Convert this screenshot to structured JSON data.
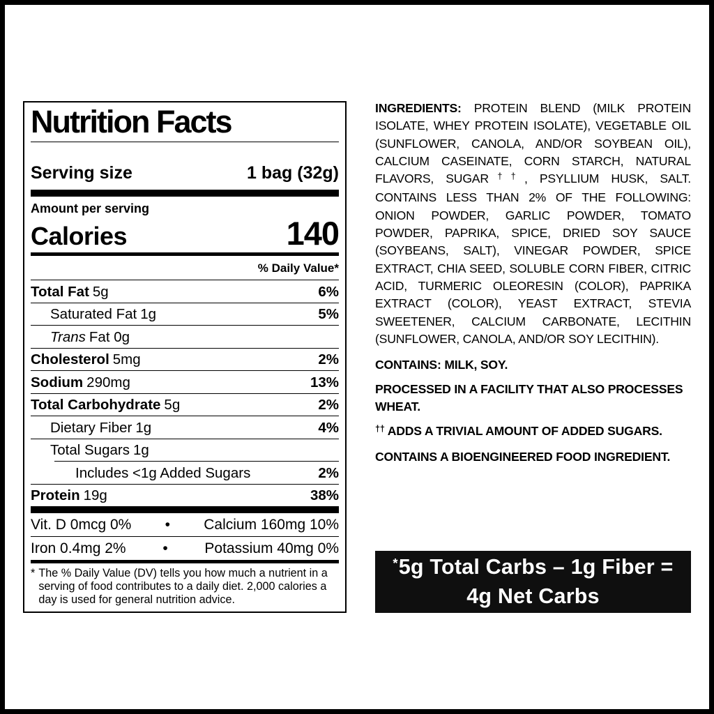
{
  "colors": {
    "text": "#000000",
    "page_background": "#ffffff",
    "net_box_background": "#0f0f0f",
    "net_box_text": "#ffffff"
  },
  "label": {
    "title": "Nutrition Facts",
    "serving": {
      "label": "Serving size",
      "value": "1 bag (32g)"
    },
    "amount_per_serving": "Amount per serving",
    "calories": {
      "label": "Calories",
      "value": "140"
    },
    "daily_value_header": "% Daily Value*",
    "rows": [
      {
        "name": "Total Fat",
        "amount": "5g",
        "dv": "6%"
      },
      {
        "name": "Saturated Fat",
        "amount": "1g",
        "dv": "5%"
      },
      {
        "name": "Trans",
        "amount": "Fat 0g",
        "dv": ""
      },
      {
        "name": "Cholesterol",
        "amount": "5mg",
        "dv": "2%"
      },
      {
        "name": "Sodium",
        "amount": "290mg",
        "dv": "13%"
      },
      {
        "name": "Total Carbohydrate",
        "amount": "5g",
        "dv": "2%"
      },
      {
        "name": "Dietary Fiber",
        "amount": "1g",
        "dv": "4%"
      },
      {
        "name": "Total Sugars",
        "amount": "1g",
        "dv": ""
      },
      {
        "name": "Includes <1g Added Sugars",
        "amount": "",
        "dv": "2%"
      },
      {
        "name": "Protein",
        "amount": "19g",
        "dv": "38%"
      }
    ],
    "vitamins": [
      {
        "left": "Vit. D 0mcg 0%",
        "bullet": "•",
        "right": "Calcium 160mg 10%"
      },
      {
        "left": "Iron 0.4mg 2%",
        "bullet": "•",
        "right": "Potassium 40mg 0%"
      }
    ],
    "footnote_marker": "*",
    "footnote": "The % Daily Value (DV) tells you how much a nutrient in a serving of food contributes to a daily diet. 2,000 calories a day is used for general nutrition advice."
  },
  "ingredients": {
    "lead": "INGREDIENTS:",
    "part1": " PROTEIN BLEND (MILK PROTEIN ISOLATE, WHEY PROTEIN ISOLATE), VEGETABLE OIL (SUNFLOWER, CANOLA, AND/OR SOYBEAN OIL), CALCIUM CASEINATE, CORN STARCH, NATURAL FLAVORS, SUGAR",
    "dagger": "††",
    "part2": ", PSYLLIUM HUSK, SALT. CONTAINS LESS THAN 2% OF THE FOLLOWING: ONION POWDER, GARLIC POWDER, TOMATO POWDER, PAPRIKA, SPICE, DRIED SOY SAUCE (SOYBEANS, SALT), VINEGAR POWDER, SPICE EXTRACT, CHIA SEED, SOLUBLE CORN FIBER, CITRIC ACID, TURMERIC OLEORESIN (COLOR), PAPRIKA EXTRACT (COLOR), YEAST EXTRACT, STEVIA SWEETENER, CALCIUM CARBONATE, LECITHIN (SUNFLOWER, CANOLA, AND/OR SOY LECITHIN).",
    "contains_note": "CONTAINS: MILK, SOY.",
    "facility_note": "PROCESSED IN A FACILITY THAT ALSO PROCESSES WHEAT.",
    "added_sugars_marker": "††",
    "added_sugars_note": "ADDS A TRIVIAL AMOUNT OF ADDED SUGARS.",
    "bioengineered_note": "CONTAINS A BIOENGINEERED FOOD INGREDIENT."
  },
  "net_carbs_box": {
    "marker": "*",
    "line1": "5g Total Carbs – 1g Fiber =",
    "line2": "4g Net Carbs"
  }
}
